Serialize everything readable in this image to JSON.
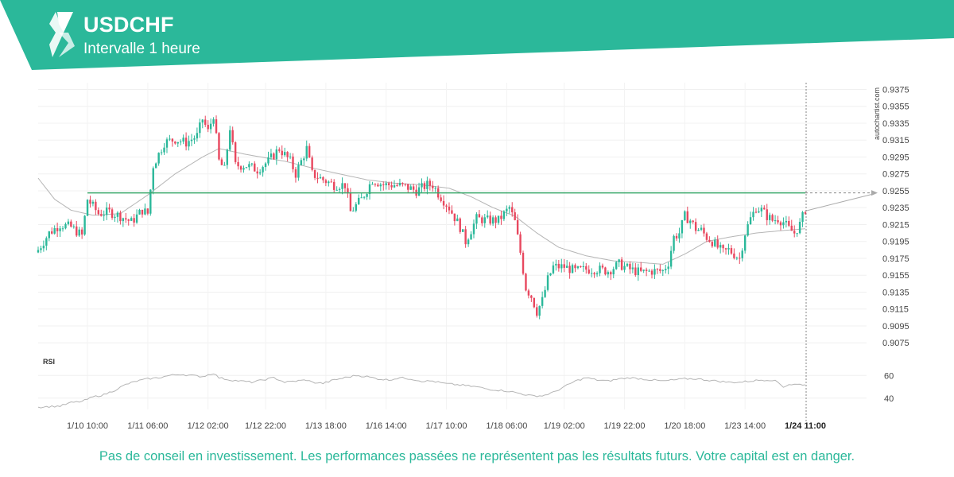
{
  "header": {
    "symbol": "USDCHF",
    "interval": "Intervalle 1 heure"
  },
  "branding": {
    "watermark": "autochartist.com",
    "accent_color": "#2bb89a",
    "logo_icon": "autochartist-logo-icon"
  },
  "footer": {
    "disclaimer": "Pas de conseil en investissement. Les performances passées ne représentent pas les résultats futurs. Votre capital est en danger."
  },
  "chart_data": {
    "type": "candlestick",
    "instrument": "USDCHF",
    "timeframe": "1h",
    "x_tick_labels": [
      "1/10 10:00",
      "1/11 06:00",
      "1/12 02:00",
      "1/12 22:00",
      "1/13 18:00",
      "1/16 14:00",
      "1/17 10:00",
      "1/18 06:00",
      "1/19 02:00",
      "1/19 22:00",
      "1/20 18:00",
      "1/23 14:00",
      "1/24 11:00"
    ],
    "highlighted_x_label": "1/24 11:00",
    "y_tick_labels": [
      "0.9375",
      "0.9355",
      "0.9335",
      "0.9315",
      "0.9295",
      "0.9275",
      "0.9255",
      "0.9235",
      "0.9215",
      "0.9195",
      "0.9175",
      "0.9155",
      "0.9135",
      "0.9115",
      "0.9095",
      "0.9075"
    ],
    "ylim": [
      0.9062,
      0.9383
    ],
    "resistance_level": 0.92525,
    "resistance_color": "#3aa86a",
    "current_close": 0.9233,
    "projection_target": 0.92525,
    "up_color": "#2bb89a",
    "down_color": "#e8485f",
    "price_waypoints": [
      [
        0,
        0.9185
      ],
      [
        4,
        0.9205
      ],
      [
        8,
        0.9215
      ],
      [
        12,
        0.9212
      ],
      [
        16,
        0.9202
      ],
      [
        18,
        0.9245
      ],
      [
        22,
        0.9228
      ],
      [
        26,
        0.923
      ],
      [
        30,
        0.9225
      ],
      [
        34,
        0.9218
      ],
      [
        38,
        0.9232
      ],
      [
        40,
        0.9228
      ],
      [
        42,
        0.9285
      ],
      [
        46,
        0.9312
      ],
      [
        50,
        0.9316
      ],
      [
        54,
        0.9312
      ],
      [
        58,
        0.932
      ],
      [
        60,
        0.934
      ],
      [
        62,
        0.9325
      ],
      [
        64,
        0.9345
      ],
      [
        66,
        0.929
      ],
      [
        68,
        0.928
      ],
      [
        70,
        0.933
      ],
      [
        72,
        0.9285
      ],
      [
        76,
        0.9285
      ],
      [
        80,
        0.928
      ],
      [
        84,
        0.929
      ],
      [
        88,
        0.9305
      ],
      [
        92,
        0.929
      ],
      [
        94,
        0.9275
      ],
      [
        96,
        0.929
      ],
      [
        98,
        0.9305
      ],
      [
        100,
        0.9275
      ],
      [
        104,
        0.9268
      ],
      [
        108,
        0.9262
      ],
      [
        112,
        0.9262
      ],
      [
        114,
        0.923
      ],
      [
        118,
        0.9245
      ],
      [
        122,
        0.9268
      ],
      [
        126,
        0.9262
      ],
      [
        130,
        0.9262
      ],
      [
        134,
        0.926
      ],
      [
        138,
        0.9255
      ],
      [
        142,
        0.9262
      ],
      [
        144,
        0.9262
      ],
      [
        146,
        0.9252
      ],
      [
        150,
        0.9235
      ],
      [
        154,
        0.9212
      ],
      [
        156,
        0.9195
      ],
      [
        160,
        0.9222
      ],
      [
        164,
        0.922
      ],
      [
        168,
        0.922
      ],
      [
        172,
        0.9235
      ],
      [
        174,
        0.9218
      ],
      [
        176,
        0.9182
      ],
      [
        178,
        0.914
      ],
      [
        180,
        0.913
      ],
      [
        182,
        0.9112
      ],
      [
        184,
        0.9125
      ],
      [
        186,
        0.915
      ],
      [
        188,
        0.9165
      ],
      [
        192,
        0.9165
      ],
      [
        196,
        0.916
      ],
      [
        200,
        0.9162
      ],
      [
        204,
        0.9162
      ],
      [
        208,
        0.916
      ],
      [
        212,
        0.9168
      ],
      [
        216,
        0.9162
      ],
      [
        220,
        0.9158
      ],
      [
        224,
        0.916
      ],
      [
        228,
        0.916
      ],
      [
        230,
        0.917
      ],
      [
        232,
        0.92
      ],
      [
        234,
        0.9205
      ],
      [
        236,
        0.9225
      ],
      [
        238,
        0.922
      ],
      [
        240,
        0.921
      ],
      [
        242,
        0.9208
      ],
      [
        244,
        0.92
      ],
      [
        246,
        0.9195
      ],
      [
        248,
        0.9188
      ],
      [
        250,
        0.9182
      ],
      [
        252,
        0.9185
      ],
      [
        254,
        0.918
      ],
      [
        256,
        0.9175
      ],
      [
        258,
        0.9205
      ],
      [
        260,
        0.9222
      ],
      [
        262,
        0.9235
      ],
      [
        264,
        0.9232
      ],
      [
        266,
        0.9225
      ],
      [
        268,
        0.922
      ],
      [
        270,
        0.9222
      ],
      [
        272,
        0.9218
      ],
      [
        274,
        0.921
      ],
      [
        276,
        0.9205
      ],
      [
        278,
        0.9215
      ],
      [
        280,
        0.9233
      ]
    ],
    "moving_average": {
      "color": "#b5b5b5",
      "waypoints": [
        [
          0,
          0.927
        ],
        [
          6,
          0.9245
        ],
        [
          12,
          0.9232
        ],
        [
          20,
          0.9226
        ],
        [
          30,
          0.9228
        ],
        [
          40,
          0.925
        ],
        [
          50,
          0.9275
        ],
        [
          60,
          0.9295
        ],
        [
          66,
          0.9305
        ],
        [
          76,
          0.9298
        ],
        [
          90,
          0.929
        ],
        [
          100,
          0.9282
        ],
        [
          110,
          0.9275
        ],
        [
          120,
          0.9268
        ],
        [
          130,
          0.9264
        ],
        [
          140,
          0.9262
        ],
        [
          150,
          0.9258
        ],
        [
          158,
          0.9248
        ],
        [
          166,
          0.9235
        ],
        [
          174,
          0.9225
        ],
        [
          182,
          0.9205
        ],
        [
          190,
          0.9188
        ],
        [
          200,
          0.9178
        ],
        [
          210,
          0.9172
        ],
        [
          220,
          0.917
        ],
        [
          228,
          0.9168
        ],
        [
          236,
          0.918
        ],
        [
          244,
          0.9195
        ],
        [
          252,
          0.92
        ],
        [
          262,
          0.9205
        ],
        [
          272,
          0.9208
        ],
        [
          280,
          0.921
        ]
      ]
    },
    "rsi": {
      "label": "RSI",
      "y_tick_labels": [
        "60",
        "40"
      ],
      "ylim": [
        30,
        70
      ],
      "waypoints": [
        [
          0,
          32
        ],
        [
          8,
          33
        ],
        [
          12,
          36
        ],
        [
          16,
          37
        ],
        [
          20,
          41
        ],
        [
          24,
          43
        ],
        [
          28,
          47
        ],
        [
          32,
          52
        ],
        [
          36,
          55
        ],
        [
          40,
          57
        ],
        [
          44,
          58
        ],
        [
          48,
          60
        ],
        [
          52,
          61
        ],
        [
          56,
          60
        ],
        [
          60,
          59
        ],
        [
          64,
          62
        ],
        [
          66,
          58
        ],
        [
          70,
          56
        ],
        [
          74,
          55
        ],
        [
          78,
          54
        ],
        [
          82,
          56
        ],
        [
          86,
          58
        ],
        [
          90,
          54
        ],
        [
          94,
          55
        ],
        [
          98,
          56
        ],
        [
          100,
          54
        ],
        [
          104,
          53
        ],
        [
          108,
          56
        ],
        [
          112,
          58
        ],
        [
          116,
          60
        ],
        [
          120,
          59
        ],
        [
          124,
          57
        ],
        [
          128,
          56
        ],
        [
          132,
          58
        ],
        [
          136,
          57
        ],
        [
          140,
          55
        ],
        [
          144,
          55
        ],
        [
          148,
          53
        ],
        [
          152,
          52
        ],
        [
          156,
          51
        ],
        [
          160,
          50
        ],
        [
          164,
          48
        ],
        [
          168,
          47
        ],
        [
          172,
          46
        ],
        [
          176,
          44
        ],
        [
          180,
          42
        ],
        [
          184,
          42
        ],
        [
          188,
          45
        ],
        [
          192,
          50
        ],
        [
          196,
          55
        ],
        [
          200,
          58
        ],
        [
          204,
          56
        ],
        [
          208,
          55
        ],
        [
          212,
          57
        ],
        [
          216,
          58
        ],
        [
          220,
          57
        ],
        [
          224,
          56
        ],
        [
          228,
          55
        ],
        [
          232,
          56
        ],
        [
          236,
          57
        ],
        [
          240,
          57
        ],
        [
          244,
          56
        ],
        [
          248,
          55
        ],
        [
          252,
          54
        ],
        [
          256,
          54
        ],
        [
          260,
          55
        ],
        [
          264,
          56
        ],
        [
          268,
          56
        ],
        [
          270,
          54
        ],
        [
          272,
          50
        ],
        [
          274,
          52
        ],
        [
          278,
          52
        ],
        [
          280,
          52
        ]
      ]
    }
  }
}
